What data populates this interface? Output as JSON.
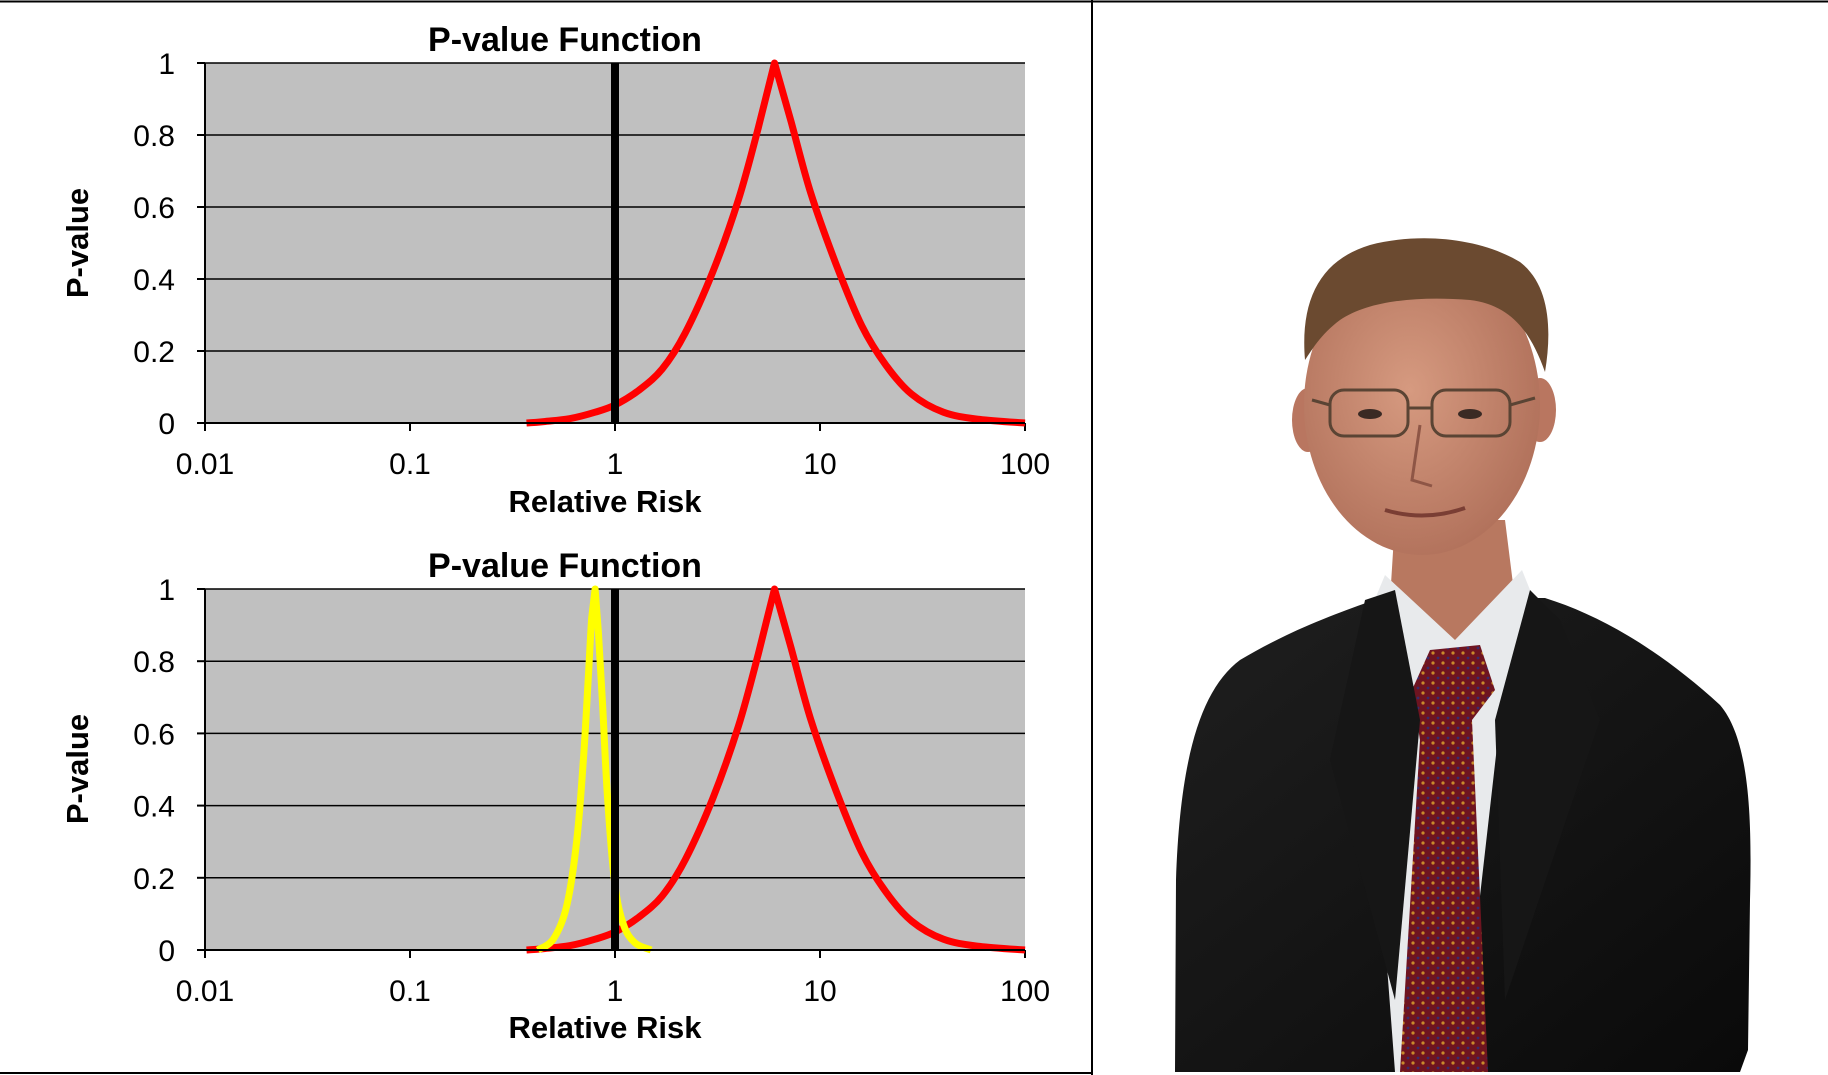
{
  "chart_data": [
    {
      "type": "line",
      "title": "P-value Function",
      "xlabel": "Relative Risk",
      "ylabel": "P-value",
      "x_scale": "log",
      "xlim": [
        0.01,
        100
      ],
      "ylim": [
        0,
        1
      ],
      "x_ticks": [
        "0.01",
        "0.1",
        "1",
        "10",
        "100"
      ],
      "y_ticks": [
        "0",
        "0.2",
        "0.4",
        "0.6",
        "0.8",
        "1"
      ],
      "grid": "horizontal",
      "plot_background": "#c0c0c0",
      "reference_line": {
        "x": 1,
        "color": "#000000"
      },
      "series": [
        {
          "color": "#ff0000",
          "x": [
            0.37,
            0.45,
            0.6,
            0.8,
            1.0,
            1.3,
            1.7,
            2.2,
            3.0,
            4.0,
            5.0,
            6.0,
            7.2,
            9.0,
            12.0,
            16.0,
            21.0,
            28.0,
            40.0,
            60.0,
            100.0
          ],
          "values": [
            0.0,
            0.004,
            0.012,
            0.03,
            0.05,
            0.09,
            0.15,
            0.25,
            0.42,
            0.62,
            0.82,
            1.0,
            0.84,
            0.64,
            0.44,
            0.27,
            0.16,
            0.08,
            0.03,
            0.01,
            0.0
          ]
        }
      ]
    },
    {
      "type": "line",
      "title": "P-value Function",
      "xlabel": "Relative Risk",
      "ylabel": "P-value",
      "x_scale": "log",
      "xlim": [
        0.01,
        100
      ],
      "ylim": [
        0,
        1
      ],
      "x_ticks": [
        "0.01",
        "0.1",
        "1",
        "10",
        "100"
      ],
      "y_ticks": [
        "0",
        "0.2",
        "0.4",
        "0.6",
        "0.8",
        "1"
      ],
      "grid": "horizontal",
      "plot_background": "#c0c0c0",
      "reference_line": {
        "x": 1,
        "color": "#000000"
      },
      "series": [
        {
          "color": "#ff0000",
          "x": [
            0.37,
            0.45,
            0.6,
            0.8,
            1.0,
            1.3,
            1.7,
            2.2,
            3.0,
            4.0,
            5.0,
            6.0,
            7.2,
            9.0,
            12.0,
            16.0,
            21.0,
            28.0,
            40.0,
            60.0,
            100.0
          ],
          "values": [
            0.0,
            0.004,
            0.012,
            0.03,
            0.05,
            0.09,
            0.15,
            0.25,
            0.42,
            0.62,
            0.82,
            1.0,
            0.84,
            0.64,
            0.44,
            0.27,
            0.16,
            0.08,
            0.03,
            0.01,
            0.0
          ]
        },
        {
          "color": "#ffff00",
          "x": [
            0.42,
            0.5,
            0.58,
            0.65,
            0.7,
            0.74,
            0.77,
            0.8,
            0.83,
            0.87,
            0.92,
            1.0,
            1.1,
            1.25,
            1.5
          ],
          "values": [
            0.0,
            0.03,
            0.12,
            0.3,
            0.52,
            0.75,
            0.92,
            1.0,
            0.88,
            0.68,
            0.42,
            0.18,
            0.07,
            0.02,
            0.0
          ]
        }
      ]
    }
  ],
  "photo": {
    "name": "portrait-photo",
    "subject": "man-in-dark-suit",
    "colors": {
      "suit": "#141414",
      "shirt": "#e8eaec",
      "tie": "#6e1420",
      "skin": "#c88a72",
      "hair": "#6b4a30"
    }
  },
  "layout_colors": {
    "divider": "#000000",
    "background": "#ffffff"
  }
}
